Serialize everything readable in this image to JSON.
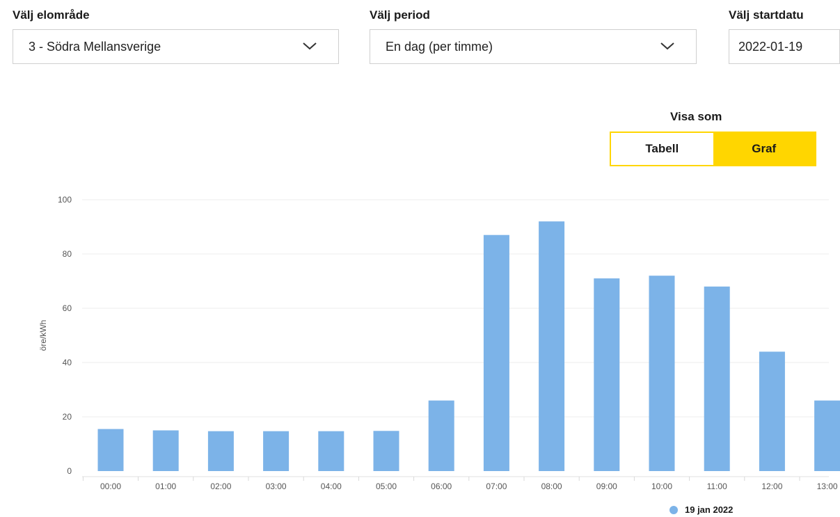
{
  "filters": {
    "area": {
      "label": "Välj elområde",
      "value": "3 - Södra Mellansverige",
      "icon": "chevron-down-icon"
    },
    "period": {
      "label": "Välj period",
      "value": "En dag (per timme)",
      "icon": "chevron-down-icon"
    },
    "start_date": {
      "label": "Välj startdatu",
      "value": "2022-01-19"
    }
  },
  "view_toggle": {
    "label": "Visa som",
    "options": [
      "Tabell",
      "Graf"
    ],
    "active": "Graf"
  },
  "colors": {
    "accent": "#ffd600",
    "bar": "#7cb3e8",
    "grid": "#eeeeee"
  },
  "chart_data": {
    "type": "bar",
    "ylabel": "öre/kWh",
    "ylim": [
      0,
      100
    ],
    "yticks": [
      0,
      20,
      40,
      60,
      80,
      100
    ],
    "categories": [
      "00:00",
      "01:00",
      "02:00",
      "03:00",
      "04:00",
      "05:00",
      "06:00",
      "07:00",
      "08:00",
      "09:00",
      "10:00",
      "11:00",
      "12:00",
      "13:00"
    ],
    "series": [
      {
        "name": "19 jan 2022",
        "values": [
          15.5,
          15,
          14.7,
          14.7,
          14.7,
          14.8,
          26,
          87,
          92,
          71,
          72,
          68,
          44,
          26
        ]
      }
    ],
    "legend": "bottom-right"
  }
}
